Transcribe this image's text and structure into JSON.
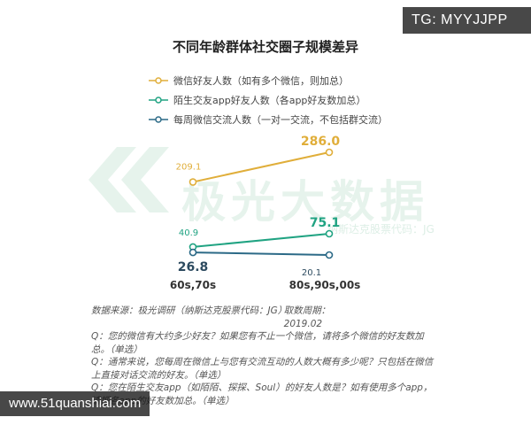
{
  "tag_badge": "TG: MYYJJPP",
  "site_badge": "www.51quanshiai.com",
  "watermark": {
    "brand": "极光大数据",
    "sub": "纳斯达克股票代码：JG"
  },
  "notes": {
    "source": "数据来源：极光调研（纳斯达克股票代码：JG）",
    "period": "取数周期：2019.02",
    "q1": "Q：您的微信有大约多少好友？如果您有不止一个微信，请将多个微信的好友数加总。（单选）",
    "q2": "Q：通常来说，您每周在微信上与您有交流互动的人数大概有多少呢？只包括在微信上直接对话交流的好友。（单选）",
    "q3": "Q：您在陌生交友app（如陌陌、探探、Soul）的好友人数是？如有使用多个app，请把各app的好友数加总。（单选）"
  },
  "colors": {
    "wechat": "#E0AE3A",
    "stranger": "#20A382",
    "weekly": "#2C6A87"
  },
  "chart_data": {
    "type": "line",
    "title": "不同年龄群体社交圈子规模差异",
    "categories": [
      "60s,70s",
      "80s,90s,00s"
    ],
    "series": [
      {
        "name": "微信好友人数（如有多个微信，则加总）",
        "values": [
          209.1,
          286.0
        ],
        "labels": [
          "209.1",
          "286.0"
        ]
      },
      {
        "name": "陌生交友app好友人数（各app好友数加总）",
        "values": [
          40.9,
          75.1
        ],
        "labels": [
          "40.9",
          "75.1"
        ]
      },
      {
        "name": "每周微信交流人数（一对一交流，不包括群交流）",
        "values": [
          26.8,
          20.1
        ],
        "labels": [
          "26.8",
          "20.1"
        ]
      }
    ],
    "legend": "top-left",
    "grid": false
  }
}
